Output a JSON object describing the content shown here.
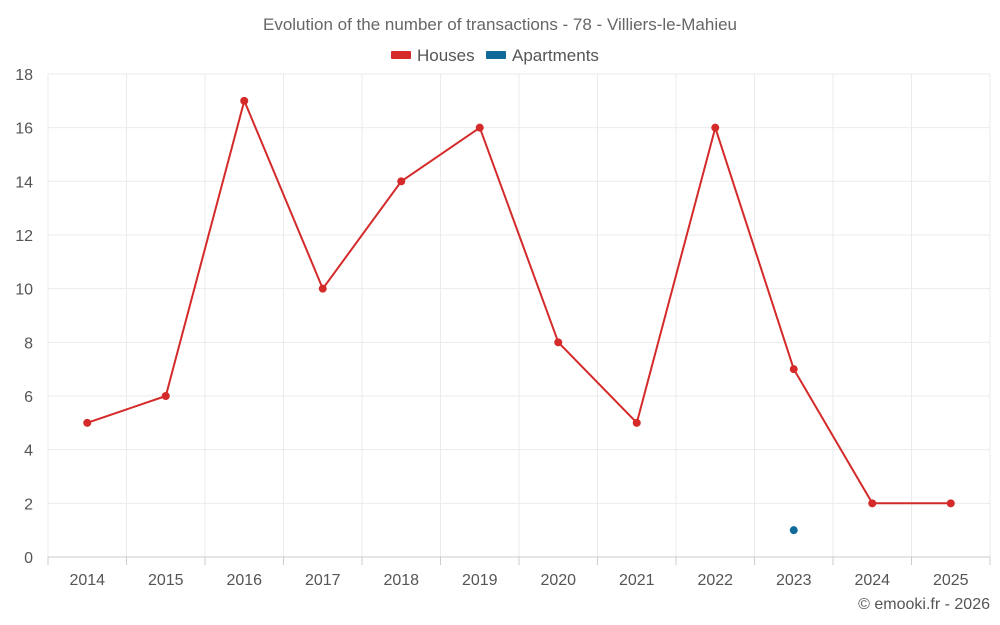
{
  "chart_data": {
    "type": "line",
    "title": "Evolution of the number of transactions - 78 - Villiers-le-Mahieu",
    "xlabel": "",
    "ylabel": "",
    "categories": [
      "2014",
      "2015",
      "2016",
      "2017",
      "2018",
      "2019",
      "2020",
      "2021",
      "2022",
      "2023",
      "2024",
      "2025"
    ],
    "ylim": [
      0,
      18
    ],
    "yticks": [
      0,
      2,
      4,
      6,
      8,
      10,
      12,
      14,
      16,
      18
    ],
    "grid": true,
    "legend_position": "top-center",
    "series": [
      {
        "name": "Houses",
        "color": "#d42a2a",
        "values": [
          5,
          6,
          17,
          10,
          14,
          16,
          8,
          5,
          16,
          7,
          2,
          2
        ]
      },
      {
        "name": "Apartments",
        "color": "#0f6a99",
        "values": [
          null,
          null,
          null,
          null,
          null,
          null,
          null,
          null,
          null,
          1,
          null,
          null
        ]
      }
    ]
  },
  "footer": {
    "copyright": "© emooki.fr - 2026"
  }
}
